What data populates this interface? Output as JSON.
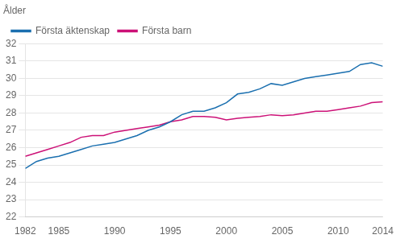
{
  "chart_data": {
    "type": "line",
    "ylabel": "Ålder",
    "x": [
      1982,
      1983,
      1984,
      1985,
      1986,
      1987,
      1988,
      1989,
      1990,
      1991,
      1992,
      1993,
      1994,
      1995,
      1996,
      1997,
      1998,
      1999,
      2000,
      2001,
      2002,
      2003,
      2004,
      2005,
      2006,
      2007,
      2008,
      2009,
      2010,
      2011,
      2012,
      2013,
      2014
    ],
    "series": [
      {
        "name": "Första äktenskap",
        "color": "#1a6faf",
        "values": [
          24.8,
          25.2,
          25.4,
          25.5,
          25.7,
          25.9,
          26.1,
          26.2,
          26.3,
          26.5,
          26.7,
          27.0,
          27.2,
          27.5,
          27.9,
          28.1,
          28.1,
          28.3,
          28.6,
          29.1,
          29.2,
          29.4,
          29.7,
          29.6,
          29.8,
          30.0,
          30.1,
          30.2,
          30.3,
          30.4,
          30.8,
          30.9,
          30.7
        ]
      },
      {
        "name": "Första barn",
        "color": "#cc1177",
        "values": [
          25.5,
          25.7,
          25.9,
          26.1,
          26.3,
          26.6,
          26.7,
          26.7,
          26.9,
          27.0,
          27.1,
          27.2,
          27.3,
          27.5,
          27.6,
          27.8,
          27.8,
          27.75,
          27.6,
          27.7,
          27.75,
          27.8,
          27.9,
          27.85,
          27.9,
          28.0,
          28.1,
          28.1,
          28.2,
          28.3,
          28.4,
          28.6,
          28.65
        ]
      }
    ],
    "xlim": [
      1982,
      2014
    ],
    "xticks": [
      1982,
      1985,
      1990,
      1995,
      2000,
      2005,
      2010,
      2014
    ],
    "ylim": [
      22,
      32
    ],
    "yticks": [
      22,
      23,
      24,
      25,
      26,
      27,
      28,
      29,
      30,
      31,
      32
    ],
    "grid": "y",
    "legend": "top"
  }
}
